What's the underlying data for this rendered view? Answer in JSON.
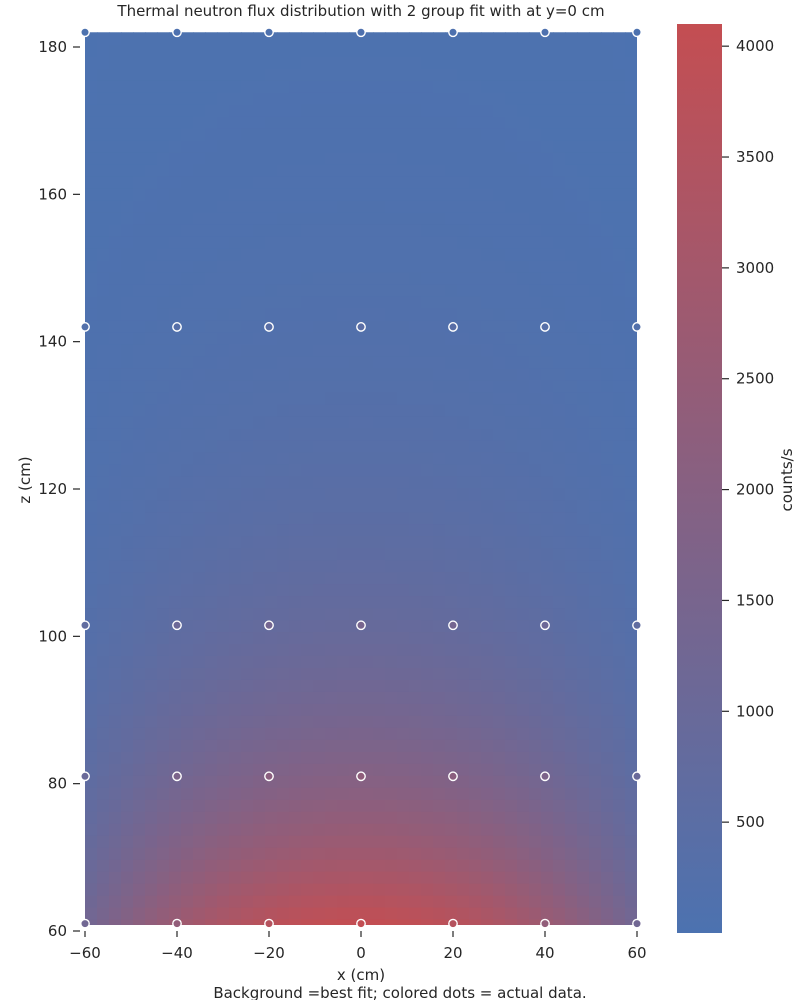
{
  "chart_data": {
    "type": "heatmap",
    "title": "Thermal neutron flux distribution with 2 group fit with at y=0 cm",
    "xlabel": "x (cm)",
    "ylabel": "z (cm)",
    "caption": "Background =best fit; colored dots = actual data.",
    "xlim": [
      -60,
      60
    ],
    "ylim": [
      60,
      182
    ],
    "x_ticks": [
      "−60",
      "−40",
      "−20",
      "0",
      "20",
      "40",
      "60"
    ],
    "y_ticks": [
      "60",
      "80",
      "100",
      "120",
      "140",
      "160",
      "180"
    ],
    "colorbar": {
      "label": "counts/s",
      "range": [
        0,
        4100
      ],
      "ticks": [
        "500",
        "1000",
        "1500",
        "2000",
        "2500",
        "3000",
        "3500",
        "4000"
      ],
      "colors": [
        "#4c72b0",
        "#c44e52"
      ]
    },
    "grid": false,
    "data_points": {
      "x": [
        -60,
        -40,
        -20,
        0,
        20,
        40,
        60
      ],
      "z": [
        61,
        81,
        101.5,
        142,
        182
      ],
      "counts_by_row": [
        [
          1250,
          2400,
          3600,
          4050,
          3600,
          2400,
          1250
        ],
        [
          1000,
          1650,
          2150,
          2300,
          2150,
          1650,
          1000
        ],
        [
          700,
          1100,
          1400,
          1500,
          1400,
          1100,
          700
        ],
        [
          200,
          350,
          450,
          500,
          450,
          350,
          200
        ],
        [
          30,
          60,
          80,
          90,
          80,
          60,
          30
        ]
      ]
    }
  }
}
